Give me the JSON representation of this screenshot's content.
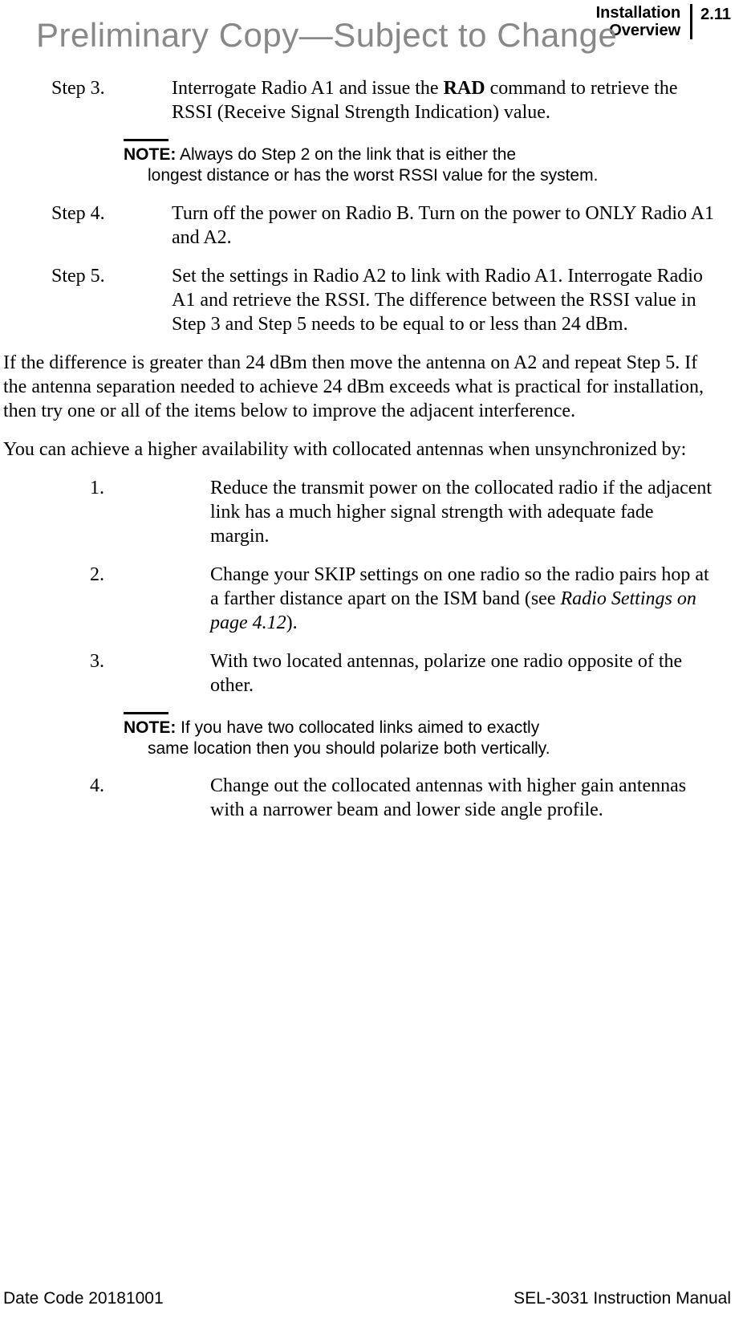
{
  "header": {
    "line1": "Installation",
    "line2": "Overview",
    "page_number": "2.11"
  },
  "watermark": "Preliminary Copy—Subject to Change",
  "steps": {
    "s3": {
      "label": "Step 3.",
      "text_pre": "Interrogate Radio A1 and issue the ",
      "text_bold": "RAD",
      "text_post": " command to retrieve the RSSI (Receive Signal Strength Indication) value."
    },
    "note1": {
      "label": "NOTE:",
      "first": " Always do Step 2 on the link that is either the",
      "rest": "longest distance or has the worst RSSI value for the system."
    },
    "s4": {
      "label": "Step 4.",
      "text": "Turn off the power on Radio B. Turn on the power to ONLY Radio A1 and A2."
    },
    "s5": {
      "label": "Step 5.",
      "text": "Set the settings in Radio A2 to link with Radio A1. Interrogate Radio A1 and retrieve the RSSI. The difference between the RSSI value in Step 3 and Step 5 needs to be equal to or less than 24 dBm."
    }
  },
  "para1": "If the difference is greater than 24 dBm then move the antenna on A2 and repeat Step 5. If the antenna separation needed to achieve 24 dBm exceeds what is practical for installation, then try one or all of the items below to improve the adjacent interference.",
  "para2": "You can achieve a higher availability with collocated antennas when unsynchronized by:",
  "list": {
    "i1": {
      "num": "1.",
      "text": "Reduce the transmit power on the collocated radio if the adjacent link has a much higher signal strength with adequate fade margin."
    },
    "i2": {
      "num": "2.",
      "text_pre": "Change your SKIP settings on one radio so the radio pairs hop at a farther distance apart on the ISM band (see ",
      "text_italic": "Radio Settings on page 4.12",
      "text_post": ")."
    },
    "i3": {
      "num": "3.",
      "text": "With two located antennas, polarize one radio opposite of the other."
    },
    "note2": {
      "label": "NOTE:",
      "first": " If you have two collocated links aimed to exactly",
      "rest": "same location then you should polarize both vertically."
    },
    "i4": {
      "num": "4.",
      "text": "Change out the collocated antennas with higher gain antennas with a narrower beam and lower side angle profile."
    }
  },
  "footer": {
    "left": "Date Code 20181001",
    "right": "SEL-3031 Instruction Manual"
  }
}
